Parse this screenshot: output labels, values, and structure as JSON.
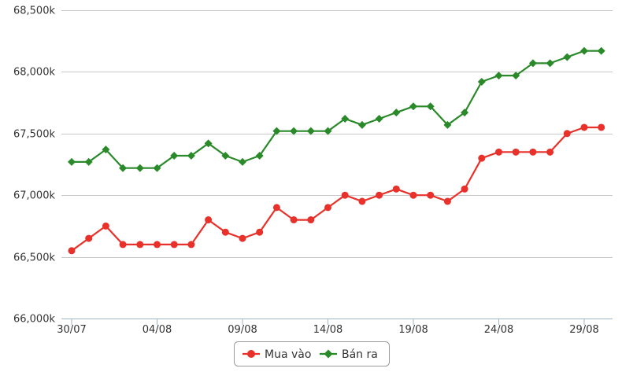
{
  "chart_data": {
    "type": "line",
    "x": [
      "30/07",
      "31/07",
      "01/08",
      "02/08",
      "03/08",
      "04/08",
      "05/08",
      "06/08",
      "07/08",
      "08/08",
      "09/08",
      "10/08",
      "11/08",
      "12/08",
      "13/08",
      "14/08",
      "15/08",
      "16/08",
      "17/08",
      "18/08",
      "19/08",
      "20/08",
      "21/08",
      "22/08",
      "23/08",
      "24/08",
      "25/08",
      "26/08",
      "27/08",
      "28/08",
      "29/08",
      "30/08"
    ],
    "x_tick_labels": [
      "30/07",
      "04/08",
      "09/08",
      "14/08",
      "19/08",
      "24/08",
      "29/08"
    ],
    "y_tick_labels": [
      "66,000k",
      "66,500k",
      "67,000k",
      "67,500k",
      "68,000k",
      "68,500k"
    ],
    "ylim": [
      66000,
      68500
    ],
    "grid": "horizontal",
    "legend_position": "bottom-center",
    "series": [
      {
        "name": "Mua vào",
        "color": "#e8312a",
        "marker": "circle",
        "values": [
          66550,
          66650,
          66750,
          66600,
          66600,
          66600,
          66600,
          66600,
          66800,
          66700,
          66650,
          66700,
          66900,
          66800,
          66800,
          66900,
          67000,
          66950,
          67000,
          67050,
          67000,
          67000,
          66950,
          67050,
          67300,
          67350,
          67350,
          67350,
          67350,
          67500,
          67550,
          67550
        ]
      },
      {
        "name": "Bán ra",
        "color": "#2a8a2a",
        "marker": "diamond",
        "values": [
          67270,
          67270,
          67370,
          67220,
          67220,
          67220,
          67320,
          67320,
          67420,
          67320,
          67270,
          67320,
          67520,
          67520,
          67520,
          67520,
          67620,
          67570,
          67620,
          67670,
          67720,
          67720,
          67570,
          67670,
          67920,
          67970,
          67970,
          68070,
          68070,
          68120,
          68170,
          68170
        ]
      }
    ]
  }
}
